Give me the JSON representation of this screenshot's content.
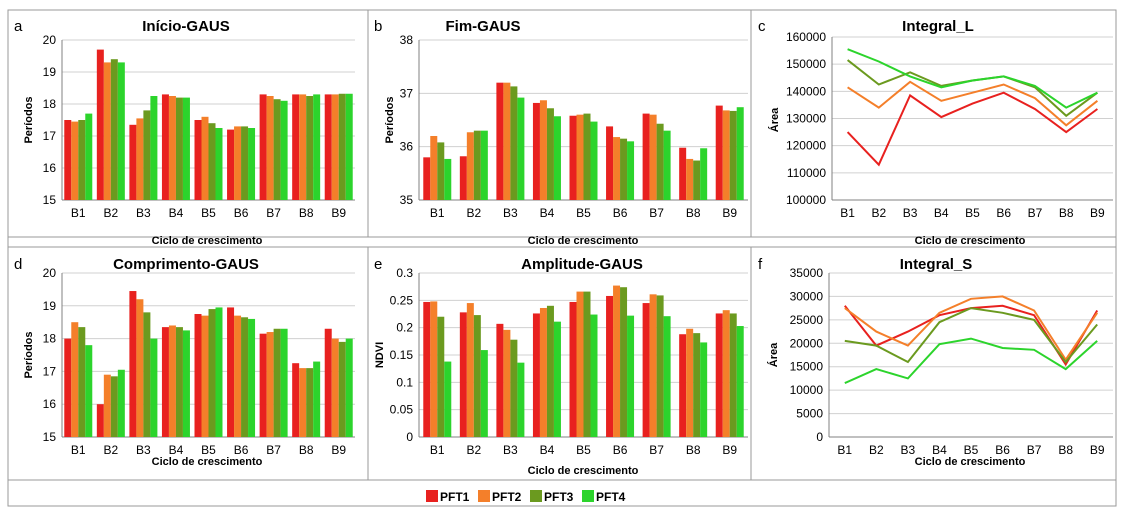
{
  "colors": {
    "PFT1": "#e8211f",
    "PFT2": "#f47f2a",
    "PFT3": "#6b9a1f",
    "PFT4": "#2cd42c"
  },
  "legend": [
    "PFT1",
    "PFT2",
    "PFT3",
    "PFT4"
  ],
  "chart_data": [
    {
      "letter": "a",
      "type": "bar",
      "title": "Início-GAUS",
      "xlabel": "Ciclo de crescimento",
      "ylabel": "Períodos",
      "ylim": [
        15,
        20
      ],
      "yticks": [
        15,
        16,
        17,
        18,
        19,
        20
      ],
      "categories": [
        "B1",
        "B2",
        "B3",
        "B4",
        "B5",
        "B6",
        "B7",
        "B8",
        "B9"
      ],
      "series": [
        {
          "name": "PFT1",
          "values": [
            17.5,
            19.7,
            17.35,
            18.3,
            17.5,
            17.2,
            18.3,
            18.3,
            18.3
          ]
        },
        {
          "name": "PFT2",
          "values": [
            17.45,
            19.3,
            17.55,
            18.25,
            17.6,
            17.3,
            18.25,
            18.3,
            18.3
          ]
        },
        {
          "name": "PFT3",
          "values": [
            17.5,
            19.4,
            17.8,
            18.2,
            17.4,
            17.3,
            18.15,
            18.25,
            18.32
          ]
        },
        {
          "name": "PFT4",
          "values": [
            17.7,
            19.3,
            18.25,
            18.2,
            17.25,
            17.25,
            18.1,
            18.3,
            18.32
          ]
        }
      ]
    },
    {
      "letter": "b",
      "type": "bar",
      "title": "Fim-GAUS",
      "xlabel": "Ciclo de crescimento",
      "ylabel": "Períodos",
      "ylim": [
        35,
        38
      ],
      "yticks": [
        35,
        36,
        37,
        38
      ],
      "categories": [
        "B1",
        "B2",
        "B3",
        "B4",
        "B5",
        "B6",
        "B7",
        "B8",
        "B9"
      ],
      "series": [
        {
          "name": "PFT1",
          "values": [
            35.8,
            35.82,
            37.2,
            36.82,
            36.58,
            36.38,
            36.62,
            35.98,
            36.77
          ]
        },
        {
          "name": "PFT2",
          "values": [
            36.2,
            36.27,
            37.2,
            36.87,
            36.6,
            36.18,
            36.6,
            35.77,
            36.68
          ]
        },
        {
          "name": "PFT3",
          "values": [
            36.08,
            36.3,
            37.13,
            36.72,
            36.62,
            36.15,
            36.43,
            35.74,
            36.67
          ]
        },
        {
          "name": "PFT4",
          "values": [
            35.77,
            36.3,
            36.92,
            36.57,
            36.47,
            36.1,
            36.3,
            35.97,
            36.74
          ]
        }
      ]
    },
    {
      "letter": "c",
      "type": "line",
      "title": "Integral_L",
      "xlabel": "Ciclo de crescimento",
      "ylabel": "Área",
      "ylim": [
        100000,
        160000
      ],
      "yticks": [
        100000,
        110000,
        120000,
        130000,
        140000,
        150000,
        160000
      ],
      "categories": [
        "B1",
        "B2",
        "B3",
        "B4",
        "B5",
        "B6",
        "B7",
        "B8",
        "B9"
      ],
      "series": [
        {
          "name": "PFT1",
          "values": [
            125000,
            113000,
            138500,
            130500,
            135500,
            139500,
            133500,
            125000,
            133500
          ]
        },
        {
          "name": "PFT2",
          "values": [
            141500,
            134000,
            143500,
            136500,
            139500,
            142500,
            137500,
            127500,
            136500
          ]
        },
        {
          "name": "PFT3",
          "values": [
            151500,
            142500,
            147000,
            142000,
            144000,
            145500,
            141500,
            131000,
            139500
          ]
        },
        {
          "name": "PFT4",
          "values": [
            155500,
            151000,
            145500,
            141500,
            144000,
            145500,
            142000,
            134000,
            139500
          ]
        }
      ]
    },
    {
      "letter": "d",
      "type": "bar",
      "title": "Comprimento-GAUS",
      "xlabel": "Ciclo de crescimento",
      "ylabel": "Períodos",
      "ylim": [
        15,
        20
      ],
      "yticks": [
        15,
        16,
        17,
        18,
        19,
        20
      ],
      "categories": [
        "B1",
        "B2",
        "B3",
        "B4",
        "B5",
        "B6",
        "B7",
        "B8",
        "B9"
      ],
      "series": [
        {
          "name": "PFT1",
          "values": [
            18.0,
            16.0,
            19.45,
            18.35,
            18.75,
            18.95,
            18.15,
            17.25,
            18.3
          ]
        },
        {
          "name": "PFT2",
          "values": [
            18.5,
            16.9,
            19.2,
            18.4,
            18.7,
            18.7,
            18.2,
            17.1,
            18.0
          ]
        },
        {
          "name": "PFT3",
          "values": [
            18.35,
            16.85,
            18.8,
            18.35,
            18.9,
            18.65,
            18.3,
            17.1,
            17.9
          ]
        },
        {
          "name": "PFT4",
          "values": [
            17.8,
            17.05,
            18.0,
            18.25,
            18.95,
            18.6,
            18.3,
            17.3,
            18.0
          ]
        }
      ]
    },
    {
      "letter": "e",
      "type": "bar",
      "title": "Amplitude-GAUS",
      "xlabel": "Ciclo de crescimento",
      "ylabel": "NDVI",
      "ylim": [
        0,
        0.3
      ],
      "yticks": [
        0,
        0.05,
        0.1,
        0.15,
        0.2,
        0.25,
        0.3
      ],
      "ytick_labels": [
        "0",
        "0.05",
        "0.1",
        "0.15",
        "0.2",
        "0.25",
        "0.3"
      ],
      "categories": [
        "B1",
        "B2",
        "B3",
        "B4",
        "B5",
        "B6",
        "B7",
        "B8",
        "B9"
      ],
      "series": [
        {
          "name": "PFT1",
          "values": [
            0.247,
            0.228,
            0.207,
            0.226,
            0.247,
            0.258,
            0.245,
            0.188,
            0.226
          ]
        },
        {
          "name": "PFT2",
          "values": [
            0.248,
            0.245,
            0.196,
            0.236,
            0.266,
            0.277,
            0.261,
            0.198,
            0.232
          ]
        },
        {
          "name": "PFT3",
          "values": [
            0.22,
            0.223,
            0.178,
            0.24,
            0.266,
            0.274,
            0.259,
            0.19,
            0.226
          ]
        },
        {
          "name": "PFT4",
          "values": [
            0.138,
            0.159,
            0.136,
            0.211,
            0.224,
            0.222,
            0.221,
            0.173,
            0.203
          ]
        }
      ]
    },
    {
      "letter": "f",
      "type": "line",
      "title": "Integral_S",
      "xlabel": "Ciclo de crescimento",
      "ylabel": "Área",
      "ylim": [
        0,
        35000
      ],
      "yticks": [
        0,
        5000,
        10000,
        15000,
        20000,
        25000,
        30000,
        35000
      ],
      "categories": [
        "B1",
        "B2",
        "B3",
        "B4",
        "B5",
        "B6",
        "B7",
        "B8",
        "B9"
      ],
      "series": [
        {
          "name": "PFT1",
          "values": [
            28000,
            19500,
            22500,
            26000,
            27500,
            28000,
            26000,
            15500,
            27000
          ]
        },
        {
          "name": "PFT2",
          "values": [
            27500,
            22500,
            19500,
            26500,
            29500,
            30000,
            27000,
            16500,
            26500
          ]
        },
        {
          "name": "PFT3",
          "values": [
            20500,
            19500,
            16000,
            24500,
            27500,
            26500,
            25000,
            16000,
            24000
          ]
        },
        {
          "name": "PFT4",
          "values": [
            11500,
            14500,
            12500,
            19800,
            21000,
            19000,
            18600,
            14500,
            20500
          ]
        }
      ]
    }
  ]
}
